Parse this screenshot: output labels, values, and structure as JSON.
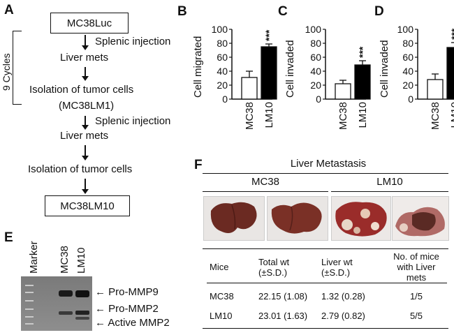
{
  "panels": {
    "A": "A",
    "B": "B",
    "C": "C",
    "D": "D",
    "E": "E",
    "F": "F"
  },
  "flow": {
    "start_box": "MC38Luc",
    "step1_arrow_label": "Splenic injection",
    "step1_result": "Liver mets",
    "step2": "Isolation of tumor cells",
    "step2_sub": "(MC38LM1)",
    "cycles_label": "9 Cycles",
    "step3_arrow_label": "Splenic injection",
    "step3_result": "Liver mets",
    "step4": "Isolation of tumor cells",
    "end_box": "MC38LM10"
  },
  "chart_data": [
    {
      "type": "bar",
      "panel": "B",
      "categories": [
        "MC38",
        "LM10"
      ],
      "values": [
        31,
        75
      ],
      "errors": [
        9,
        4
      ],
      "bar_colors": [
        "#ffffff",
        "#000000"
      ],
      "ylabel": "Cell migrated",
      "ylim": [
        0,
        100
      ],
      "yticks": [
        "0",
        "20",
        "40",
        "60",
        "80",
        "100"
      ],
      "significance": "***"
    },
    {
      "type": "bar",
      "panel": "C",
      "categories": [
        "MC38",
        "LM10"
      ],
      "values": [
        22,
        49
      ],
      "errors": [
        5,
        6
      ],
      "bar_colors": [
        "#ffffff",
        "#000000"
      ],
      "ylabel": "Cell invaded",
      "ylim": [
        0,
        100
      ],
      "yticks": [
        "0",
        "20",
        "40",
        "60",
        "80",
        "100"
      ],
      "significance": "***"
    },
    {
      "type": "bar",
      "panel": "D",
      "categories": [
        "MC38",
        "LM10"
      ],
      "values": [
        28,
        74
      ],
      "errors": [
        8,
        7
      ],
      "bar_colors": [
        "#ffffff",
        "#000000"
      ],
      "ylabel": "Cell invaded",
      "ylim": [
        0,
        100
      ],
      "yticks": [
        "0",
        "20",
        "40",
        "60",
        "80",
        "100"
      ],
      "significance": "***"
    }
  ],
  "gel": {
    "lane_labels": [
      "Marker",
      "MC38",
      "LM10"
    ],
    "band_labels": [
      "Pro-MMP9",
      "Pro-MMP2",
      "Active MMP2"
    ]
  },
  "liver": {
    "title": "Liver Metastasis",
    "groups": [
      "MC38",
      "LM10"
    ],
    "table": {
      "headers": [
        {
          "line1": "Mice",
          "line2": ""
        },
        {
          "line1": "Total wt",
          "line2": "(±S.D.)"
        },
        {
          "line1": "Liver wt",
          "line2": "(±S.D.)"
        },
        {
          "line1": "No. of mice",
          "line2": "with Liver mets"
        }
      ],
      "rows": [
        [
          "MC38",
          "22.15 (1.08)",
          "1.32 (0.28)",
          "1/5"
        ],
        [
          "LM10",
          "23.01 (1.63)",
          "2.79 (0.82)",
          "5/5"
        ]
      ]
    }
  }
}
